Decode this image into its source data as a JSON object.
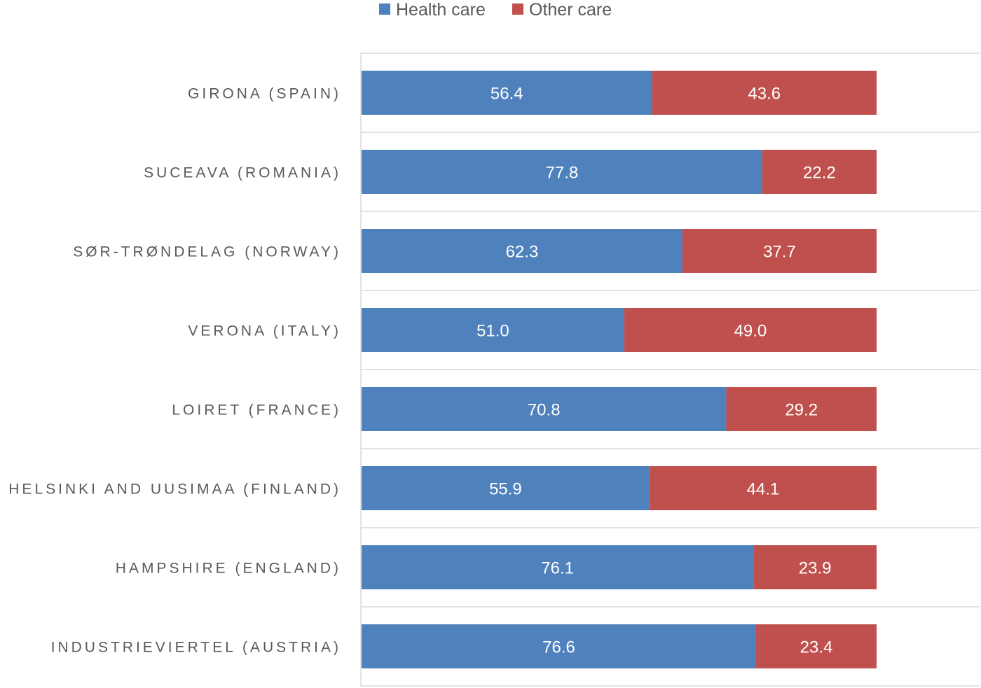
{
  "chart_data": {
    "type": "bar",
    "orientation": "horizontal",
    "stacked": true,
    "categories": [
      "GIRONA (SPAIN)",
      "SUCEAVA (ROMANIA)",
      "SØR-TRØNDELAG (NORWAY)",
      "VERONA (ITALY)",
      "LOIRET (FRANCE)",
      "HELSINKI AND UUSIMAA (FINLAND)",
      "HAMPSHIRE (ENGLAND)",
      "INDUSTRIEVIERTEL (AUSTRIA)"
    ],
    "series": [
      {
        "name": "Health care",
        "color": "#4f81bd",
        "values": [
          56.4,
          77.8,
          62.3,
          51.0,
          70.8,
          55.9,
          76.1,
          76.6
        ],
        "labels": [
          "56.4",
          "77.8",
          "62.3",
          "51.0",
          "70.8",
          "55.9",
          "76.1",
          "76.6"
        ]
      },
      {
        "name": "Other care",
        "color": "#c0504d",
        "values": [
          43.6,
          22.2,
          37.7,
          49.0,
          29.2,
          44.1,
          23.9,
          23.4
        ],
        "labels": [
          "43.6",
          "22.2",
          "37.7",
          "49.0",
          "29.2",
          "44.1",
          "23.9",
          "23.4"
        ]
      }
    ],
    "xlim": [
      0,
      100
    ],
    "title": "",
    "xlabel": "",
    "ylabel": "",
    "legend": "top-center",
    "grid": "horizontal separators between categories"
  }
}
